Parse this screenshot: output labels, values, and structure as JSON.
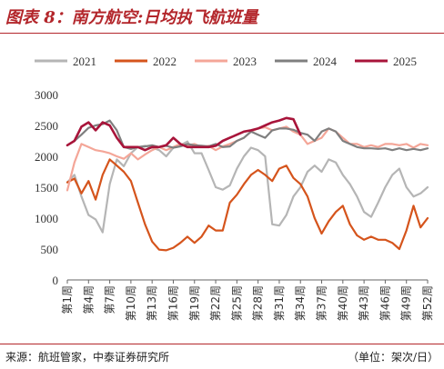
{
  "title": "图表 8：南方航空:日均执飞航班量",
  "source_text": "来源：航班管家，中泰证券研究所",
  "unit_text": "（单位：架次/日）",
  "chart_data": {
    "type": "line",
    "title": "南方航空:日均执飞航班量",
    "xlabel": "",
    "ylabel": "",
    "ylim": [
      0,
      3000
    ],
    "yticks": [
      0,
      500,
      1000,
      1500,
      2000,
      2500,
      3000
    ],
    "x_tick_labels": [
      "第1周",
      "第4周",
      "第7周",
      "第10周",
      "第13周",
      "第16周",
      "第19周",
      "第22周",
      "第25周",
      "第28周",
      "第31周",
      "第34周",
      "第37周",
      "第40周",
      "第43周",
      "第46周",
      "第49周",
      "第52周"
    ],
    "x_tick_weeks": [
      1,
      4,
      7,
      10,
      13,
      16,
      19,
      22,
      25,
      28,
      31,
      34,
      37,
      40,
      43,
      46,
      49,
      52
    ],
    "grid": false,
    "legend_position": "top",
    "series": [
      {
        "name": "2021",
        "color": "#b5b5b5",
        "values": [
          1580,
          1700,
          1350,
          1050,
          980,
          770,
          1550,
          1950,
          1840,
          2050,
          2150,
          2170,
          2140,
          2100,
          2000,
          2140,
          2180,
          2240,
          2050,
          2050,
          1780,
          1500,
          1460,
          1530,
          1800,
          2000,
          2140,
          2100,
          2000,
          900,
          880,
          1050,
          1350,
          1500,
          1750,
          1850,
          1750,
          1950,
          1900,
          1700,
          1550,
          1350,
          1100,
          1020,
          1250,
          1500,
          1700,
          1800,
          1500,
          1350,
          1400,
          1500
        ]
      },
      {
        "name": "2022",
        "color": "#d5541c",
        "values": [
          1580,
          1640,
          1400,
          1600,
          1300,
          1700,
          1950,
          1850,
          1750,
          1600,
          1250,
          900,
          620,
          490,
          480,
          520,
          600,
          700,
          600,
          700,
          880,
          800,
          800,
          1250,
          1380,
          1550,
          1700,
          1780,
          1700,
          1600,
          1800,
          1850,
          1650,
          1550,
          1350,
          1000,
          750,
          950,
          1100,
          1200,
          900,
          720,
          650,
          700,
          650,
          650,
          600,
          500,
          800,
          1200,
          850,
          1000
        ]
      },
      {
        "name": "2023",
        "color": "#f4a698",
        "values": [
          1450,
          1900,
          2200,
          2150,
          2100,
          2080,
          2050,
          2000,
          1960,
          2050,
          1950,
          2030,
          2100,
          2150,
          2100,
          2150,
          2200,
          2180,
          2200,
          2150,
          2170,
          2100,
          2160,
          2200,
          2250,
          2300,
          2400,
          2450,
          2470,
          2420,
          2450,
          2480,
          2400,
          2350,
          2200,
          2250,
          2300,
          2450,
          2400,
          2300,
          2200,
          2200,
          2150,
          2180,
          2150,
          2200,
          2200,
          2180,
          2200,
          2140,
          2200,
          2180
        ]
      },
      {
        "name": "2024",
        "color": "#7f7f7f",
        "values": [
          2180,
          2250,
          2350,
          2460,
          2500,
          2520,
          2580,
          2420,
          2150,
          2120,
          2150,
          2160,
          2180,
          2150,
          2170,
          2140,
          2160,
          2200,
          2180,
          2170,
          2160,
          2200,
          2150,
          2160,
          2250,
          2300,
          2400,
          2350,
          2300,
          2420,
          2450,
          2450,
          2430,
          2380,
          2350,
          2250,
          2400,
          2450,
          2400,
          2250,
          2200,
          2150,
          2130,
          2130,
          2120,
          2130,
          2100,
          2130,
          2100,
          2120,
          2100,
          2130
        ]
      },
      {
        "name": "2025",
        "color": "#a8143a",
        "values": [
          2180,
          2250,
          2480,
          2550,
          2420,
          2550,
          2500,
          2300,
          2150,
          2150,
          2150,
          2100,
          2150,
          2150,
          2180,
          2300,
          2200,
          2150,
          2150,
          2150,
          2150,
          2170,
          2250,
          2300,
          2350,
          2400,
          2420,
          2450,
          2500,
          2550,
          2580,
          2620,
          2600,
          2350
        ]
      }
    ]
  }
}
